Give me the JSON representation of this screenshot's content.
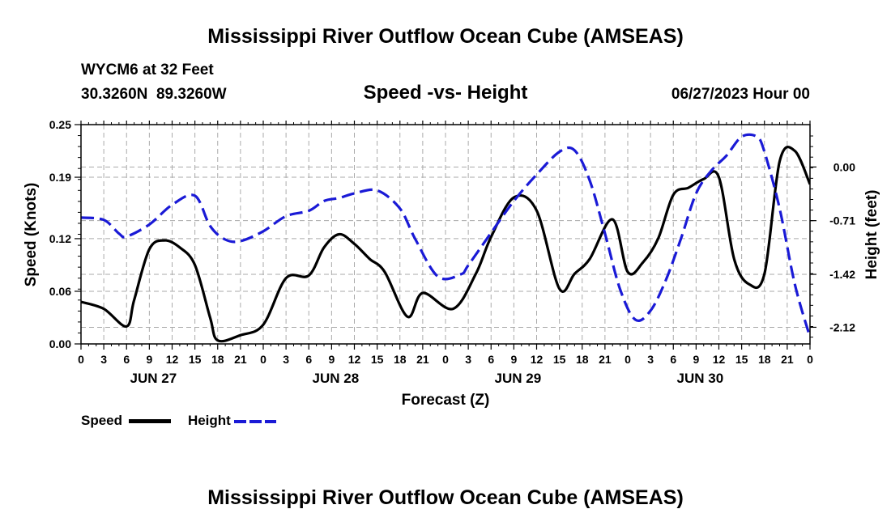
{
  "header": {
    "title": "Mississippi River Outflow Ocean Cube (AMSEAS)",
    "station": "WYCM6 at 32 Feet",
    "coords": "30.3260N  89.3260W",
    "date": "06/27/2023 Hour 00",
    "bottom_title": "Mississippi River Outflow Ocean Cube (AMSEAS)"
  },
  "legend": {
    "speed_label": "Speed",
    "height_label": "Height",
    "speed_color": "#000000",
    "height_color": "#1a1ad6"
  },
  "chart_data": {
    "type": "line",
    "title": "Speed -vs- Height",
    "xlabel": "Forecast (Z)",
    "ylabel": "Speed (Knots)",
    "y2label": "Height (feet)",
    "xlim": [
      0,
      96
    ],
    "ylim": [
      0,
      0.25
    ],
    "y2lim": [
      -2.34,
      0.56
    ],
    "x_ticks": [
      0,
      3,
      6,
      9,
      12,
      15,
      18,
      21,
      24,
      27,
      30,
      33,
      36,
      39,
      42,
      45,
      48,
      51,
      54,
      57,
      60,
      63,
      66,
      69,
      72,
      75,
      78,
      81,
      84,
      87,
      90,
      93,
      96
    ],
    "x_tick_labels": [
      "0",
      "3",
      "6",
      "9",
      "12",
      "15",
      "18",
      "21",
      "0",
      "3",
      "6",
      "9",
      "12",
      "15",
      "18",
      "21",
      "0",
      "3",
      "6",
      "9",
      "12",
      "15",
      "18",
      "21",
      "0",
      "3",
      "6",
      "9",
      "12",
      "15",
      "18",
      "21",
      "0"
    ],
    "day_labels": [
      {
        "label": "JUN 27",
        "x": 9
      },
      {
        "label": "JUN 28",
        "x": 33
      },
      {
        "label": "JUN 29",
        "x": 57
      },
      {
        "label": "JUN 30",
        "x": 81
      }
    ],
    "y_ticks": [
      0.0,
      0.06,
      0.12,
      0.19,
      0.25
    ],
    "y_tick_labels": [
      "0.00",
      "0.06",
      "0.12",
      "0.19",
      "0.25"
    ],
    "y2_ticks": [
      0.0,
      -0.71,
      -1.42,
      -2.12
    ],
    "y2_tick_labels": [
      "0.00",
      "-0.71",
      "-1.42",
      "-2.12"
    ],
    "series": [
      {
        "name": "Speed",
        "axis": "left",
        "style": "solid",
        "color": "#000000",
        "x": [
          0,
          3,
          6,
          7,
          9,
          11,
          13,
          15,
          17,
          18,
          21,
          24,
          27,
          30,
          32,
          34,
          36,
          38,
          40,
          43,
          45,
          49,
          52,
          54,
          57,
          60,
          63,
          65,
          67,
          70,
          72,
          74,
          76,
          78,
          80,
          82,
          84,
          86,
          88,
          90,
          92,
          94,
          96
        ],
        "y": [
          0.048,
          0.04,
          0.02,
          0.05,
          0.108,
          0.118,
          0.11,
          0.09,
          0.03,
          0.004,
          0.01,
          0.022,
          0.075,
          0.078,
          0.11,
          0.125,
          0.114,
          0.097,
          0.082,
          0.031,
          0.058,
          0.04,
          0.08,
          0.122,
          0.167,
          0.152,
          0.063,
          0.08,
          0.097,
          0.142,
          0.082,
          0.093,
          0.12,
          0.17,
          0.178,
          0.188,
          0.19,
          0.097,
          0.068,
          0.08,
          0.208,
          0.22,
          0.182
        ]
      },
      {
        "name": "Height",
        "axis": "right",
        "style": "dashed",
        "color": "#1a1ad6",
        "x": [
          0,
          3,
          5,
          6,
          9,
          12,
          15,
          17,
          19,
          21,
          24,
          27,
          30,
          32,
          34,
          36,
          39,
          42,
          44,
          47,
          50,
          51,
          54,
          57,
          60,
          63,
          65,
          67,
          69,
          71,
          73,
          75,
          77,
          79,
          81,
          83,
          85,
          87,
          89,
          90,
          92,
          94,
          96
        ],
        "y": [
          -0.67,
          -0.7,
          -0.88,
          -0.92,
          -0.76,
          -0.5,
          -0.38,
          -0.78,
          -0.96,
          -0.98,
          -0.85,
          -0.65,
          -0.58,
          -0.45,
          -0.41,
          -0.35,
          -0.31,
          -0.55,
          -0.95,
          -1.45,
          -1.42,
          -1.3,
          -0.87,
          -0.45,
          -0.1,
          0.2,
          0.22,
          -0.18,
          -0.88,
          -1.62,
          -2.02,
          -1.9,
          -1.5,
          -0.95,
          -0.35,
          -0.05,
          0.15,
          0.4,
          0.4,
          0.2,
          -0.55,
          -1.55,
          -2.25
        ]
      }
    ]
  }
}
